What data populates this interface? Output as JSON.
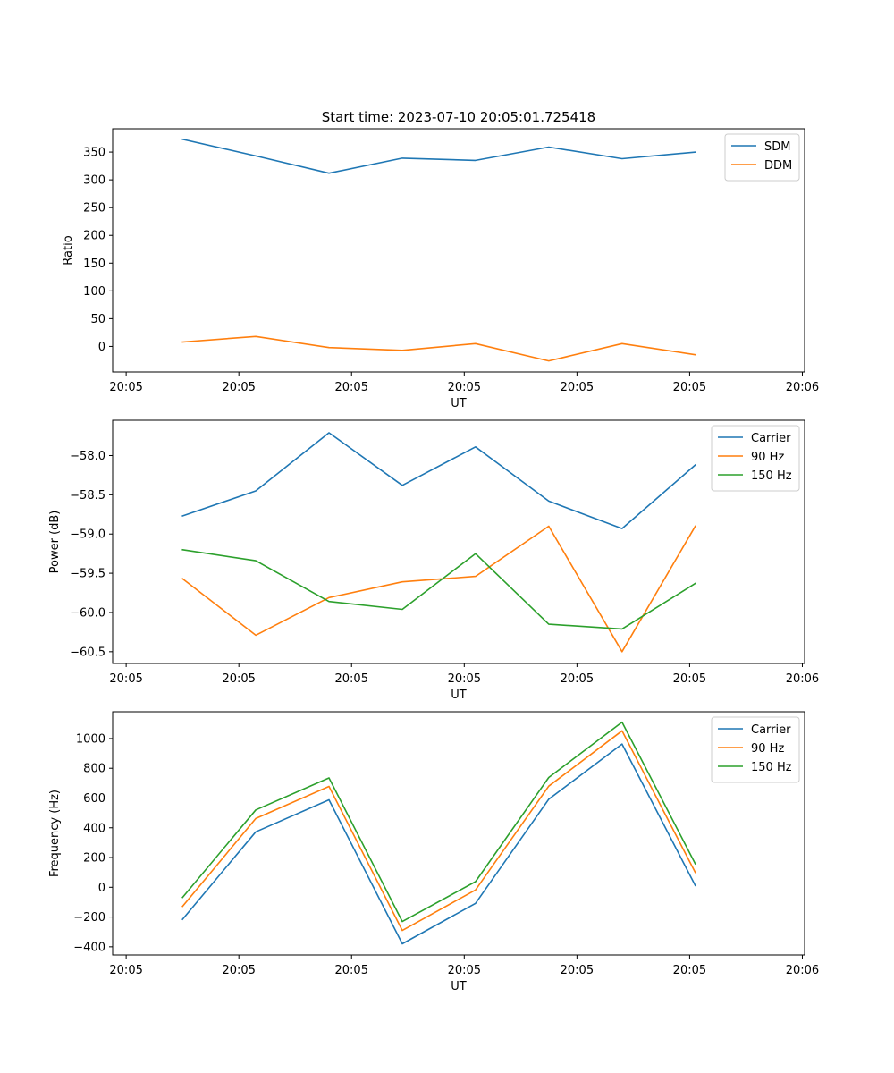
{
  "figure_title": "Start time: 2023-07-10 20:05:01.725418",
  "chart_data": [
    {
      "type": "line",
      "title": "Start time: 2023-07-10 20:05:01.725418",
      "xlabel": "UT",
      "ylabel": "Ratio",
      "x": [
        0.5,
        1.15,
        1.8,
        2.45,
        3.1,
        3.75,
        4.4,
        5.05
      ],
      "x_tick_values": [
        0,
        1,
        2,
        3,
        4,
        5,
        6
      ],
      "x_tick_labels": [
        "20:05",
        "20:05",
        "20:05",
        "20:05",
        "20:05",
        "20:05",
        "20:06"
      ],
      "xlim": [
        -0.12,
        6.02
      ],
      "ylim": [
        -46,
        392
      ],
      "y_ticks": [
        0,
        50,
        100,
        150,
        200,
        250,
        300,
        350
      ],
      "y_tick_labels": [
        "0",
        "50",
        "100",
        "150",
        "200",
        "250",
        "300",
        "350"
      ],
      "legend_position": "top-right",
      "series": [
        {
          "name": "SDM",
          "color": "#1f77b4",
          "values": [
            373,
            343,
            312,
            339,
            335,
            359,
            338,
            350
          ]
        },
        {
          "name": "DDM",
          "color": "#ff7f0e",
          "values": [
            8,
            18,
            -2,
            -7,
            5,
            -26,
            5,
            -15
          ]
        }
      ]
    },
    {
      "type": "line",
      "title": "",
      "xlabel": "UT",
      "ylabel": "Power (dB)",
      "x": [
        0.5,
        1.15,
        1.8,
        2.45,
        3.1,
        3.75,
        4.4,
        5.05
      ],
      "x_tick_values": [
        0,
        1,
        2,
        3,
        4,
        5,
        6
      ],
      "x_tick_labels": [
        "20:05",
        "20:05",
        "20:05",
        "20:05",
        "20:05",
        "20:05",
        "20:06"
      ],
      "xlim": [
        -0.12,
        6.02
      ],
      "ylim": [
        -60.65,
        -57.55
      ],
      "y_ticks": [
        -60.5,
        -60.0,
        -59.5,
        -59.0,
        -58.5,
        -58.0
      ],
      "y_tick_labels": [
        "−60.5",
        "−60.0",
        "−59.5",
        "−59.0",
        "−58.5",
        "−58.0"
      ],
      "legend_position": "top-right",
      "series": [
        {
          "name": "Carrier",
          "color": "#1f77b4",
          "values": [
            -58.77,
            -58.45,
            -57.71,
            -58.38,
            -57.89,
            -58.58,
            -58.93,
            -58.12
          ]
        },
        {
          "name": "90 Hz",
          "color": "#ff7f0e",
          "values": [
            -59.57,
            -60.29,
            -59.81,
            -59.61,
            -59.54,
            -58.9,
            -60.5,
            -58.9
          ]
        },
        {
          "name": "150 Hz",
          "color": "#2ca02c",
          "values": [
            -59.2,
            -59.34,
            -59.86,
            -59.96,
            -59.25,
            -60.15,
            -60.21,
            -59.63
          ]
        }
      ]
    },
    {
      "type": "line",
      "title": "",
      "xlabel": "UT",
      "ylabel": "Frequency (Hz)",
      "x": [
        0.5,
        1.15,
        1.8,
        2.45,
        3.1,
        3.75,
        4.4,
        5.05
      ],
      "x_tick_values": [
        0,
        1,
        2,
        3,
        4,
        5,
        6
      ],
      "x_tick_labels": [
        "20:05",
        "20:05",
        "20:05",
        "20:05",
        "20:05",
        "20:05",
        "20:06"
      ],
      "xlim": [
        -0.12,
        6.02
      ],
      "ylim": [
        -455,
        1180
      ],
      "y_ticks": [
        -400,
        -200,
        0,
        200,
        400,
        600,
        800,
        1000
      ],
      "y_tick_labels": [
        "−400",
        "−200",
        "0",
        "200",
        "400",
        "600",
        "800",
        "1000"
      ],
      "legend_position": "top-right",
      "series": [
        {
          "name": "Carrier",
          "color": "#1f77b4",
          "values": [
            -215,
            373,
            588,
            -380,
            -108,
            592,
            963,
            12
          ]
        },
        {
          "name": "90 Hz",
          "color": "#ff7f0e",
          "values": [
            -128,
            462,
            678,
            -290,
            -18,
            680,
            1052,
            100
          ]
        },
        {
          "name": "150 Hz",
          "color": "#2ca02c",
          "values": [
            -68,
            520,
            735,
            -230,
            38,
            738,
            1110,
            158
          ]
        }
      ]
    }
  ]
}
